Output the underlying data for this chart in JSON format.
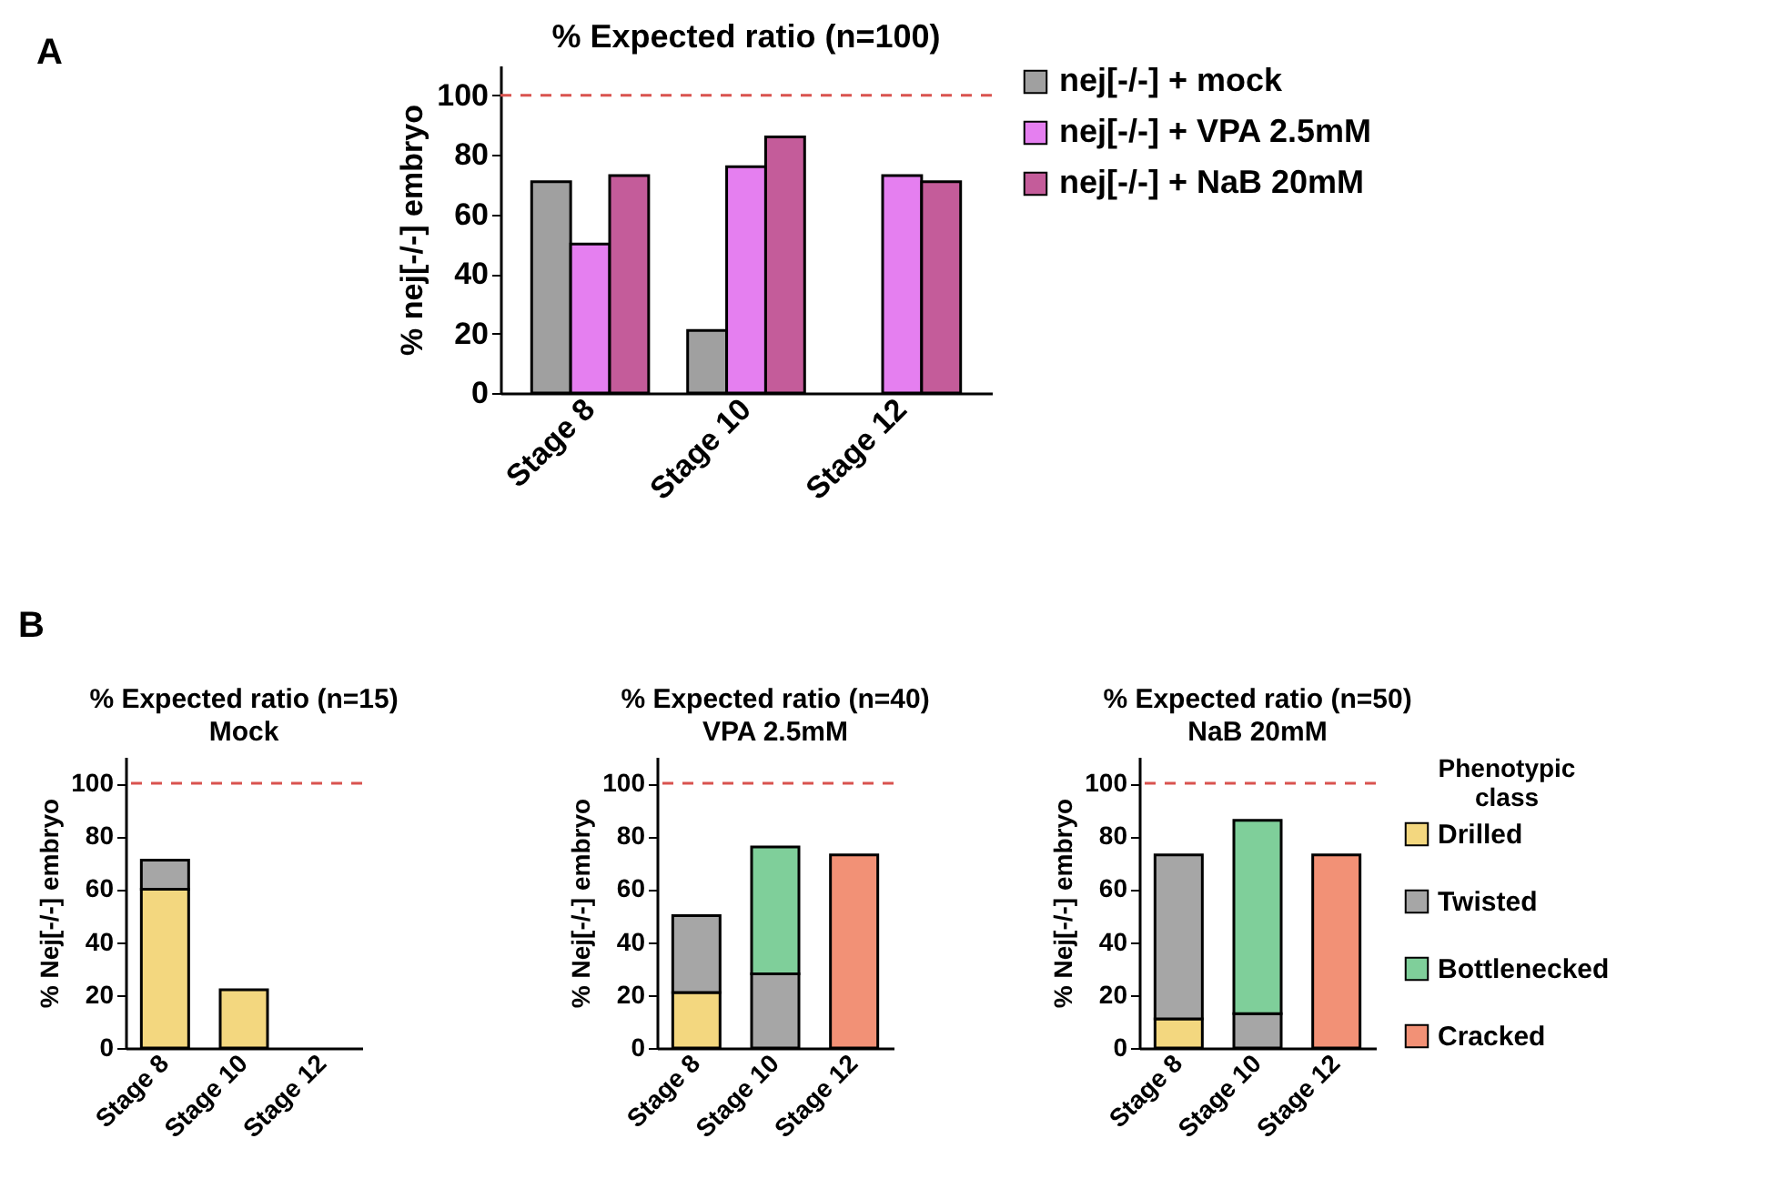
{
  "chart_data": [
    {
      "type": "bar",
      "title": "% Expected ratio (n=100)",
      "ylabel": "% nej[-/-] embryo",
      "annotations": [
        "A"
      ],
      "categories": [
        "Stage 8",
        "Stage 10",
        "Stage 12"
      ],
      "ylim": [
        0,
        110
      ],
      "yticks": [
        0,
        20,
        40,
        60,
        80,
        100
      ],
      "legend": "right",
      "grid": false,
      "ref_lines": [
        {
          "axis": "y",
          "value": 100,
          "color": "#d9534f",
          "line_style": "dashed"
        }
      ],
      "series": [
        {
          "name": "nej[-/-] + mock",
          "color": "#a0a0a0",
          "values": [
            71,
            21,
            null
          ]
        },
        {
          "name": "nej[-/-] + VPA 2.5mM",
          "color": "#e57ff0",
          "values": [
            50,
            76,
            73
          ]
        },
        {
          "name": "nej[-/-] + NaB 20mM",
          "color": "#c45c9a",
          "values": [
            73,
            86,
            71
          ]
        }
      ]
    },
    {
      "type": "bar",
      "stacked": true,
      "title": "% Expected ratio (n=15)",
      "subtitle": "Mock",
      "ylabel": "% Nej[-/-] embryo",
      "annotations": [
        "B"
      ],
      "categories": [
        "Stage 8",
        "Stage 10",
        "Stage 12"
      ],
      "ylim": [
        0,
        110
      ],
      "yticks": [
        0,
        20,
        40,
        60,
        80,
        100
      ],
      "legend": false,
      "grid": false,
      "ref_lines": [
        {
          "axis": "y",
          "value": 100,
          "color": "#d9534f",
          "line_style": "dashed"
        }
      ],
      "series": [
        {
          "color": "#f3d77f",
          "values": [
            60,
            22,
            null
          ]
        },
        {
          "color": "#a6a6a6",
          "values": [
            11,
            null,
            null
          ]
        },
        {
          "color": "#7fcf9a",
          "values": [
            null,
            null,
            null
          ]
        },
        {
          "color": "#f29176",
          "values": [
            null,
            null,
            null
          ]
        }
      ]
    },
    {
      "type": "bar",
      "stacked": true,
      "title": "% Expected ratio (n=40)",
      "subtitle": "VPA 2.5mM",
      "ylabel": "% Nej[-/-] embryo",
      "categories": [
        "Stage 8",
        "Stage 10",
        "Stage 12"
      ],
      "ylim": [
        0,
        110
      ],
      "yticks": [
        0,
        20,
        40,
        60,
        80,
        100
      ],
      "legend": false,
      "grid": false,
      "ref_lines": [
        {
          "axis": "y",
          "value": 100,
          "color": "#d9534f",
          "line_style": "dashed"
        }
      ],
      "series": [
        {
          "color": "#f3d77f",
          "values": [
            21,
            null,
            null
          ]
        },
        {
          "color": "#a6a6a6",
          "values": [
            29,
            28,
            null
          ]
        },
        {
          "color": "#7fcf9a",
          "values": [
            null,
            48,
            null
          ]
        },
        {
          "color": "#f29176",
          "values": [
            null,
            null,
            73
          ]
        }
      ]
    },
    {
      "type": "bar",
      "stacked": true,
      "title": "% Expected ratio (n=50)",
      "subtitle": "NaB 20mM",
      "ylabel": "% Nej[-/-] embryo",
      "legend_title": "Phenotypic class",
      "categories": [
        "Stage 8",
        "Stage 10",
        "Stage 12"
      ],
      "ylim": [
        0,
        110
      ],
      "yticks": [
        0,
        20,
        40,
        60,
        80,
        100
      ],
      "legend": "right",
      "grid": false,
      "ref_lines": [
        {
          "axis": "y",
          "value": 100,
          "color": "#d9534f",
          "line_style": "dashed"
        }
      ],
      "series": [
        {
          "name": "Drilled",
          "color": "#f3d77f",
          "values": [
            11,
            null,
            null
          ]
        },
        {
          "name": "Twisted",
          "color": "#a6a6a6",
          "values": [
            62,
            13,
            null
          ]
        },
        {
          "name": "Bottlenecked",
          "color": "#7fcf9a",
          "values": [
            null,
            73,
            null
          ]
        },
        {
          "name": "Cracked",
          "color": "#f29176",
          "values": [
            null,
            null,
            73
          ]
        }
      ]
    }
  ]
}
